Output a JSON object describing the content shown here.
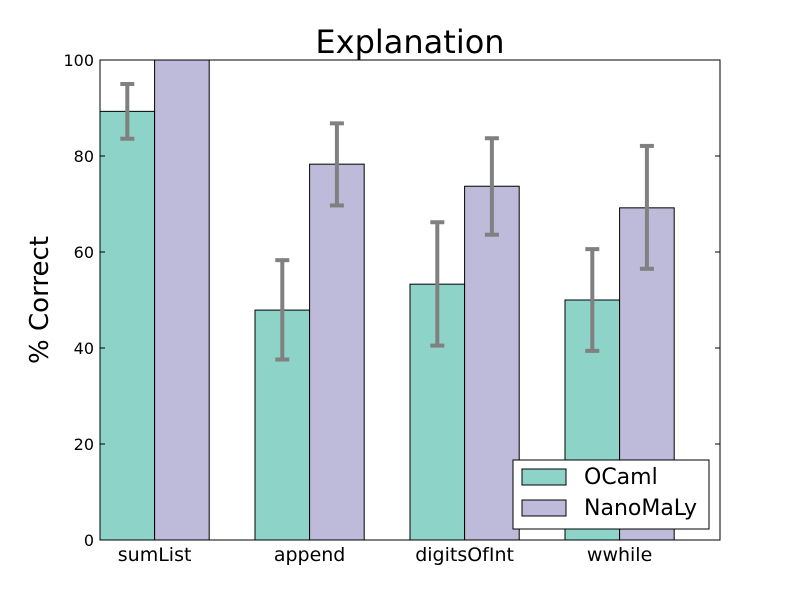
{
  "chart_data": {
    "type": "bar",
    "title": "Explanation",
    "xlabel": "",
    "ylabel": "% Correct",
    "ylim": [
      0,
      100
    ],
    "yticks": [
      0,
      20,
      40,
      60,
      80,
      100
    ],
    "categories": [
      "sumList",
      "append",
      "digitsOfInt",
      "wwhile"
    ],
    "series": [
      {
        "name": "OCaml",
        "color": "#8dd3c7",
        "values": [
          89.3,
          47.9,
          53.3,
          50.0
        ],
        "error_low": [
          83.6,
          37.6,
          40.5,
          39.4
        ],
        "error_high": [
          95.0,
          58.3,
          66.2,
          60.6
        ]
      },
      {
        "name": "NanoMaLy",
        "color": "#bebada",
        "values": [
          100.0,
          78.3,
          73.7,
          69.2
        ],
        "error_low": [
          100.0,
          69.7,
          63.6,
          56.5
        ],
        "error_high": [
          100.0,
          86.8,
          83.7,
          82.1
        ]
      }
    ],
    "error_bar_color": "#808080",
    "grid": false,
    "legend_position": "lower-right"
  }
}
